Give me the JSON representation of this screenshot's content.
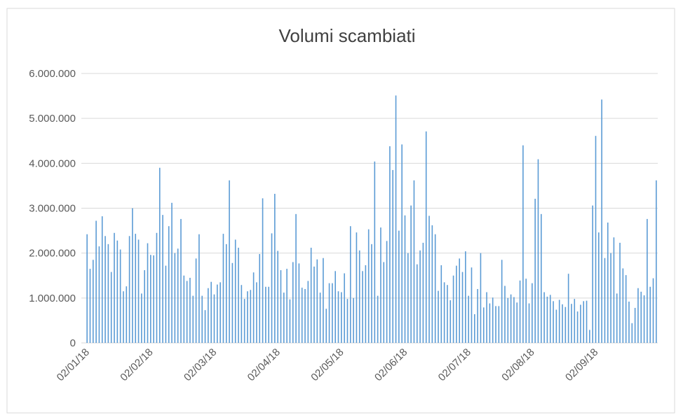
{
  "chart_data": {
    "type": "bar",
    "title": "Volumi scambiati",
    "color": "#5b9bd5",
    "ylim": [
      0,
      6000000
    ],
    "yticks": [
      0,
      {
        "value": 1000000,
        "label": "1.000.000"
      },
      {
        "value": 2000000,
        "label": "2.000.000"
      },
      {
        "value": 3000000,
        "label": "3.000.000"
      },
      {
        "value": 4000000,
        "label": "4.000.000"
      },
      {
        "value": 5000000,
        "label": "5.000.000"
      },
      {
        "value": 6000000,
        "label": "6.000.000"
      }
    ],
    "grid": true,
    "categories": [
      "02/01/18",
      null,
      null,
      null,
      null,
      null,
      null,
      null,
      null,
      null,
      null,
      null,
      null,
      null,
      null,
      null,
      null,
      null,
      null,
      null,
      null,
      "02/02/18",
      null,
      null,
      null,
      null,
      null,
      null,
      null,
      null,
      null,
      null,
      null,
      null,
      null,
      null,
      null,
      null,
      null,
      null,
      null,
      null,
      "02/03/18",
      null,
      null,
      null,
      null,
      null,
      null,
      null,
      null,
      null,
      null,
      null,
      null,
      null,
      null,
      null,
      null,
      null,
      null,
      null,
      null,
      "02/04/18",
      null,
      null,
      null,
      null,
      null,
      null,
      null,
      null,
      null,
      null,
      null,
      null,
      null,
      null,
      null,
      null,
      null,
      null,
      null,
      null,
      "02/05/18",
      null,
      null,
      null,
      null,
      null,
      null,
      null,
      null,
      null,
      null,
      null,
      null,
      null,
      null,
      null,
      null,
      null,
      null,
      null,
      null,
      "02/06/18",
      null,
      null,
      null,
      null,
      null,
      null,
      null,
      null,
      null,
      null,
      null,
      null,
      null,
      null,
      null,
      null,
      null,
      null,
      null,
      null,
      "02/07/18",
      null,
      null,
      null,
      null,
      null,
      null,
      null,
      null,
      null,
      null,
      null,
      null,
      null,
      null,
      null,
      null,
      null,
      null,
      null,
      null,
      "02/08/18",
      null,
      null,
      null,
      null,
      null,
      null,
      null,
      null,
      null,
      null,
      null,
      null,
      null,
      null,
      null,
      null,
      null,
      null,
      null,
      null,
      "02/09/18",
      null,
      null,
      null,
      null,
      null,
      null,
      null,
      null,
      null,
      null,
      null,
      null,
      null,
      null,
      null,
      null,
      null,
      null,
      null,
      null
    ],
    "values": [
      2420000,
      1650000,
      1850000,
      2720000,
      2150000,
      2820000,
      2380000,
      2200000,
      1580000,
      2450000,
      2280000,
      2080000,
      1150000,
      1260000,
      2380000,
      3000000,
      2430000,
      2300000,
      1100000,
      1620000,
      2220000,
      1960000,
      1950000,
      2450000,
      3900000,
      2850000,
      1720000,
      2600000,
      3120000,
      2000000,
      2100000,
      2760000,
      1500000,
      1380000,
      1450000,
      1050000,
      1880000,
      2420000,
      1050000,
      730000,
      1220000,
      1360000,
      1080000,
      1300000,
      1350000,
      2430000,
      2200000,
      3620000,
      1780000,
      2300000,
      2120000,
      1290000,
      980000,
      1150000,
      1180000,
      1570000,
      1350000,
      1980000,
      3220000,
      1250000,
      1250000,
      2440000,
      3320000,
      2050000,
      1620000,
      1120000,
      1650000,
      970000,
      1800000,
      2870000,
      1770000,
      1230000,
      1200000,
      1380000,
      2120000,
      1700000,
      1860000,
      1120000,
      1890000,
      760000,
      1330000,
      1330000,
      1600000,
      1150000,
      1130000,
      1550000,
      980000,
      2600000,
      1000000,
      2460000,
      2060000,
      1600000,
      1730000,
      2530000,
      2200000,
      4040000,
      1050000,
      2570000,
      1800000,
      2270000,
      4380000,
      3850000,
      5510000,
      2500000,
      4420000,
      2840000,
      2000000,
      3060000,
      3620000,
      1750000,
      2060000,
      2230000,
      4710000,
      2830000,
      2620000,
      2420000,
      1160000,
      1730000,
      1350000,
      1290000,
      950000,
      1500000,
      1720000,
      1880000,
      1580000,
      2040000,
      1050000,
      1680000,
      640000,
      1200000,
      2000000,
      790000,
      1130000,
      880000,
      1010000,
      820000,
      820000,
      1850000,
      1270000,
      1000000,
      1080000,
      1020000,
      900000,
      1390000,
      4400000,
      1430000,
      880000,
      1330000,
      3210000,
      4090000,
      2870000,
      1130000,
      1030000,
      1070000,
      930000,
      740000,
      960000,
      860000,
      800000,
      1540000,
      870000,
      980000,
      700000,
      850000,
      930000,
      940000,
      290000,
      3060000,
      4610000,
      2460000,
      5420000,
      1890000,
      2680000,
      2000000,
      2350000,
      1100000,
      2230000,
      1660000,
      1510000,
      920000,
      440000,
      780000,
      1220000,
      1140000,
      1060000,
      2760000,
      1250000,
      1440000,
      3620000
    ]
  }
}
